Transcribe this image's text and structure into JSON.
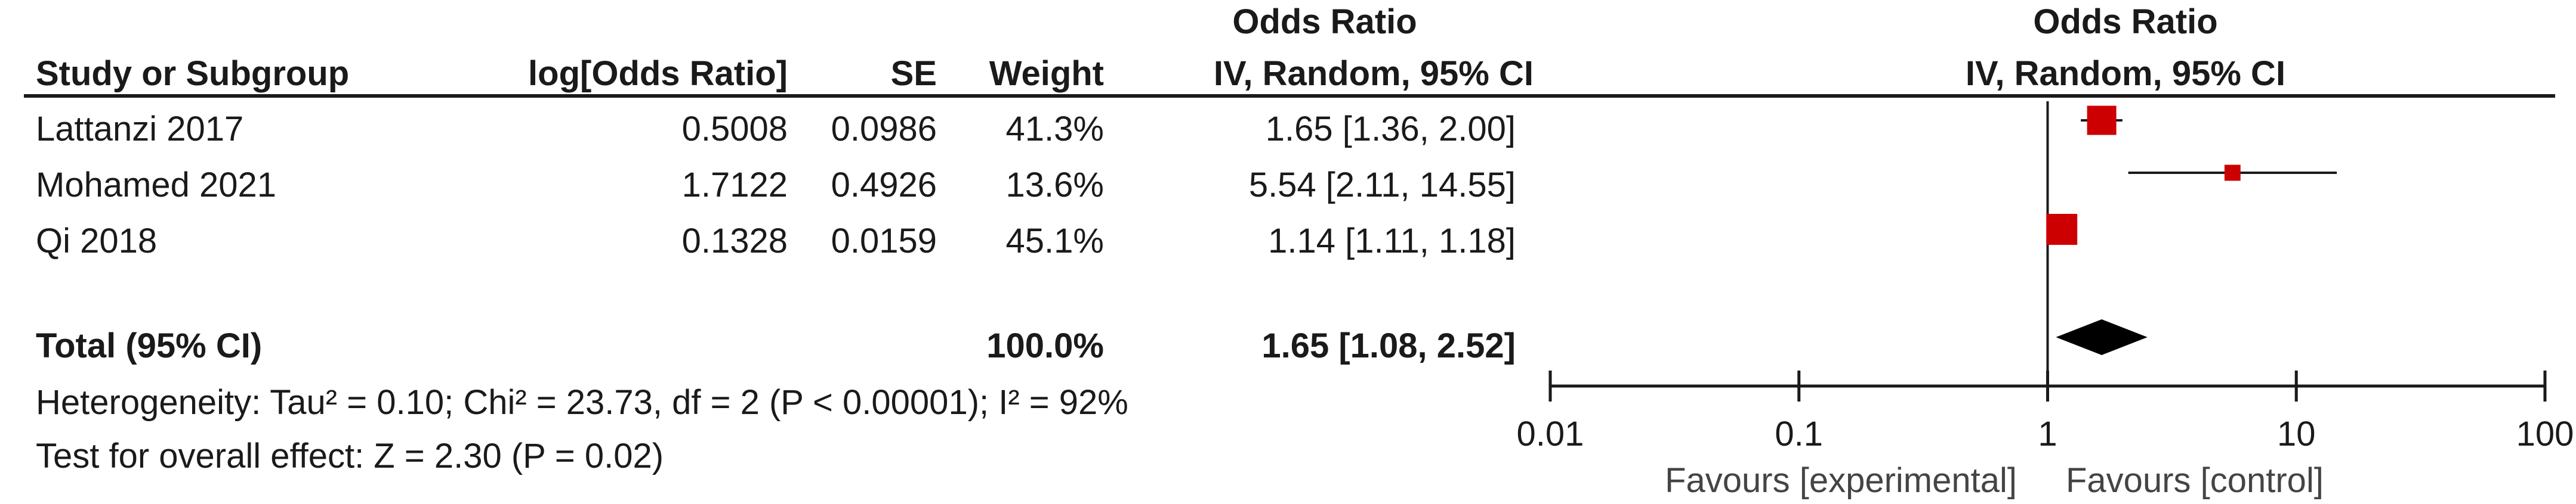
{
  "table": {
    "header_group_left": "Odds Ratio",
    "columns": {
      "study": "Study or Subgroup",
      "log_or": "log[Odds Ratio]",
      "se": "SE",
      "weight": "Weight",
      "ci": "IV, Random, 95% CI"
    },
    "rows": [
      {
        "study": "Lattanzi 2017",
        "log_or": "0.5008",
        "se": "0.0986",
        "weight": "41.3%",
        "ci": "1.65 [1.36, 2.00]"
      },
      {
        "study": "Mohamed 2021",
        "log_or": "1.7122",
        "se": "0.4926",
        "weight": "13.6%",
        "ci": "5.54 [2.11, 14.55]"
      },
      {
        "study": "Qi 2018",
        "log_or": "0.1328",
        "se": "0.0159",
        "weight": "45.1%",
        "ci": "1.14 [1.11, 1.18]"
      }
    ],
    "total": {
      "label": "Total (95% CI)",
      "weight": "100.0%",
      "ci": "1.65 [1.08, 2.52]"
    },
    "heterogeneity": "Heterogeneity: Tau² = 0.10; Chi² = 23.73, df = 2 (P < 0.00001); I² = 92%",
    "overall_effect": "Test for overall effect: Z = 2.30 (P = 0.02)"
  },
  "chart_data": {
    "type": "scatter",
    "subtype": "forest-plot",
    "title": "Odds Ratio",
    "subtitle": "IV, Random, 95% CI",
    "x_scale": "log",
    "xlim": [
      0.01,
      100
    ],
    "x_ticks": [
      0.01,
      0.1,
      1,
      10,
      100
    ],
    "x_tick_labels": [
      "0.01",
      "0.1",
      "1",
      "10",
      "100"
    ],
    "reference_line": 1,
    "favours_left": "Favours [experimental]",
    "favours_right": "Favours [control]",
    "marker_color": "#cc0000",
    "studies": [
      {
        "name": "Lattanzi 2017",
        "or": 1.65,
        "lower": 1.36,
        "upper": 2.0,
        "weight": 41.3
      },
      {
        "name": "Mohamed 2021",
        "or": 5.54,
        "lower": 2.11,
        "upper": 14.55,
        "weight": 13.6
      },
      {
        "name": "Qi 2018",
        "or": 1.14,
        "lower": 1.11,
        "upper": 1.18,
        "weight": 45.1
      }
    ],
    "total": {
      "or": 1.65,
      "lower": 1.08,
      "upper": 2.52
    }
  }
}
